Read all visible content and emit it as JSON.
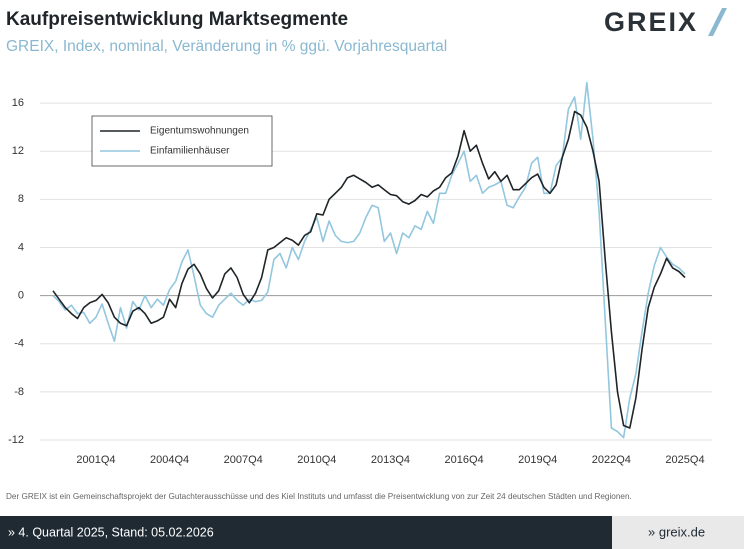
{
  "header": {
    "logo": "GREIX"
  },
  "chart_data": {
    "type": "line",
    "title": "Kaufpreisentwicklung Marktsegmente",
    "subtitle": "GREIX, Index, nominal, Veränderung in % ggü. Vorjahresquartal",
    "categories": [
      null,
      null,
      null,
      null,
      null,
      null,
      null,
      "2001Q4",
      null,
      null,
      null,
      null,
      null,
      null,
      null,
      null,
      null,
      null,
      null,
      "2004Q4",
      null,
      null,
      null,
      null,
      null,
      null,
      null,
      null,
      null,
      null,
      null,
      "2007Q4",
      null,
      null,
      null,
      null,
      null,
      null,
      null,
      null,
      null,
      null,
      null,
      "2010Q4",
      null,
      null,
      null,
      null,
      null,
      null,
      null,
      null,
      null,
      null,
      null,
      "2013Q4",
      null,
      null,
      null,
      null,
      null,
      null,
      null,
      null,
      null,
      null,
      null,
      "2016Q4",
      null,
      null,
      null,
      null,
      null,
      null,
      null,
      null,
      null,
      null,
      null,
      "2019Q4",
      null,
      null,
      null,
      null,
      null,
      null,
      null,
      null,
      null,
      null,
      null,
      "2022Q4",
      null,
      null,
      null,
      null,
      null,
      null,
      null,
      null,
      null,
      null,
      null,
      "2025Q4"
    ],
    "series": [
      {
        "name": "Eigentumswohnungen",
        "color": "#1f2528",
        "values": [
          0.4,
          -0.3,
          -1.0,
          -1.5,
          -1.9,
          -1.0,
          -0.6,
          -0.4,
          0.1,
          -0.6,
          -1.8,
          -2.3,
          -2.5,
          -1.3,
          -1.0,
          -1.5,
          -2.3,
          -2.1,
          -1.8,
          -0.3,
          -1.0,
          1.0,
          2.2,
          2.6,
          1.8,
          0.6,
          -0.2,
          0.4,
          1.8,
          2.3,
          1.5,
          0.1,
          -0.6,
          0.2,
          1.5,
          3.8,
          4.0,
          4.4,
          4.8,
          4.6,
          4.2,
          5.0,
          5.3,
          6.8,
          6.7,
          8.0,
          8.5,
          9.0,
          9.8,
          10.0,
          9.7,
          9.4,
          9.0,
          9.2,
          8.8,
          8.4,
          8.3,
          7.8,
          7.6,
          7.9,
          8.4,
          8.2,
          8.7,
          9.0,
          9.8,
          10.2,
          11.6,
          13.7,
          12.0,
          12.5,
          11.0,
          9.7,
          10.3,
          9.5,
          10.0,
          8.8,
          8.8,
          9.3,
          9.8,
          10.1,
          9.0,
          8.5,
          9.2,
          11.5,
          13.0,
          15.3,
          15.0,
          14.0,
          12.0,
          9.5,
          3.0,
          -3.0,
          -8.0,
          -10.8,
          -11.0,
          -8.5,
          -4.5,
          -1.0,
          0.7,
          1.8,
          3.1,
          2.3,
          2.0,
          1.5
        ]
      },
      {
        "name": "Einfamilienhäuser",
        "color": "#92c7df",
        "values": [
          0.0,
          -0.5,
          -1.2,
          -0.8,
          -1.5,
          -1.4,
          -2.3,
          -1.8,
          -0.7,
          -2.3,
          -3.8,
          -1.0,
          -2.7,
          -0.5,
          -1.2,
          0.0,
          -1.0,
          -0.3,
          -0.8,
          0.5,
          1.2,
          2.8,
          3.8,
          1.6,
          -0.8,
          -1.5,
          -1.8,
          -0.8,
          -0.3,
          0.2,
          -0.4,
          -0.8,
          -0.3,
          -0.5,
          -0.4,
          0.3,
          3.0,
          3.5,
          2.3,
          4.0,
          3.0,
          4.5,
          5.5,
          6.5,
          4.5,
          6.2,
          5.0,
          4.5,
          4.4,
          4.5,
          5.2,
          6.5,
          7.5,
          7.3,
          4.5,
          5.2,
          3.5,
          5.2,
          4.8,
          5.8,
          5.5,
          7.0,
          6.0,
          8.5,
          8.5,
          10.0,
          11.0,
          12.0,
          9.5,
          10.0,
          8.5,
          9.0,
          9.2,
          9.5,
          7.5,
          7.3,
          8.2,
          9.0,
          11.0,
          11.5,
          8.5,
          8.5,
          10.8,
          11.5,
          15.5,
          16.5,
          13.0,
          17.7,
          13.0,
          7.0,
          -2.0,
          -11.0,
          -11.3,
          -11.8,
          -8.5,
          -6.5,
          -3.0,
          0.2,
          2.5,
          4.0,
          3.2,
          2.6,
          2.3,
          1.8
        ]
      }
    ],
    "ylim": [
      -12.5,
      18
    ],
    "yticks": [
      -12,
      -8,
      -4,
      0,
      4,
      8,
      12,
      16
    ],
    "grid": true,
    "legend": "top-left"
  },
  "footer": {
    "note": "Der GREIX ist ein Gemeinschaftsprojekt der Gutachterausschüsse und des Kiel Instituts und umfasst die Preisentwicklung von zur Zeit 24 deutschen Städten und Regionen.",
    "status": "» 4. Quartal 2025, Stand: 05.02.2026",
    "link": "» greix.de"
  }
}
